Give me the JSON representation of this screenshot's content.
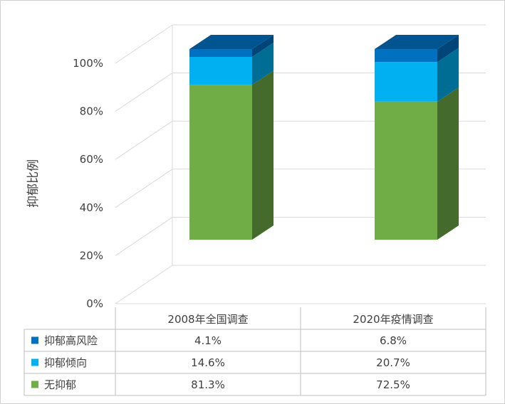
{
  "chart_data": {
    "type": "bar",
    "stacked": true,
    "three_d": true,
    "ylabel": "抑郁比例",
    "ylim": [
      0,
      100
    ],
    "yticks": [
      "0%",
      "20%",
      "40%",
      "60%",
      "80%",
      "100%"
    ],
    "grid": true,
    "categories": [
      "2008年全国调查",
      "2020年疫情调查"
    ],
    "series": [
      {
        "name": "无抑郁",
        "values": [
          81.3,
          72.5
        ],
        "labels": [
          "81.3%",
          "72.5%"
        ],
        "color": "#70ad47"
      },
      {
        "name": "抑郁倾向",
        "values": [
          14.6,
          20.7
        ],
        "labels": [
          "14.6%",
          "20.7%"
        ],
        "color": "#00b0f0"
      },
      {
        "name": "抑郁高风险",
        "values": [
          4.1,
          6.8
        ],
        "labels": [
          "4.1%",
          "6.8%"
        ],
        "color": "#0070c0"
      }
    ],
    "data_table": true
  }
}
